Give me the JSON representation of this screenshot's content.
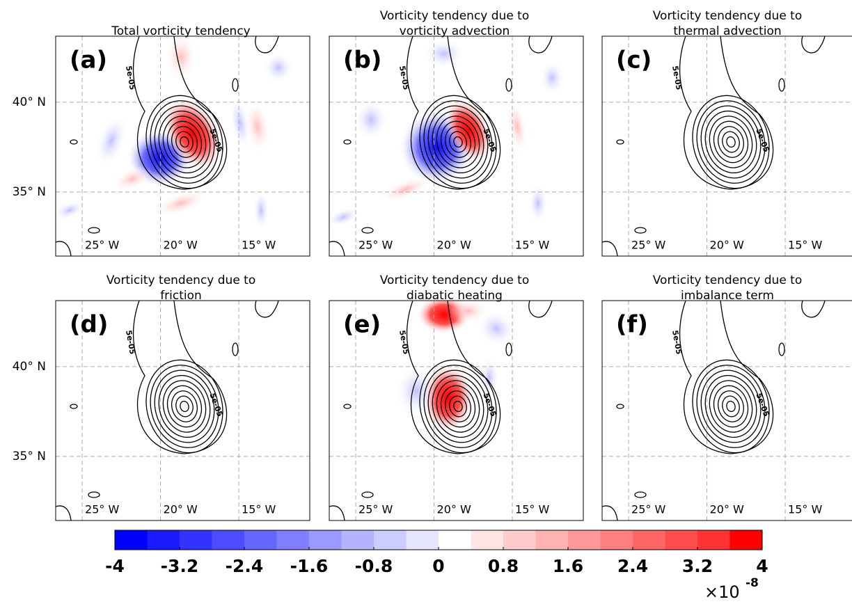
{
  "panels": [
    {
      "letter": "(a)",
      "title": [
        "Total vorticity tendency"
      ]
    },
    {
      "letter": "(b)",
      "title": [
        "Vorticity tendency due to",
        "vorticity advection"
      ]
    },
    {
      "letter": "(c)",
      "title": [
        "Vorticity tendency due to",
        "thermal advection"
      ]
    },
    {
      "letter": "(d)",
      "title": [
        "Vorticity tendency due to",
        "friction"
      ]
    },
    {
      "letter": "(e)",
      "title": [
        "Vorticity tendency due to",
        "diabatic heating"
      ]
    },
    {
      "letter": "(f)",
      "title": [
        "Vorticity tendency due to",
        "imbalance term"
      ]
    }
  ],
  "contour_label": "5e-05",
  "lat_lim": [
    31.43,
    43.68
  ],
  "lon_lim": [
    -26.69,
    -10.47
  ],
  "lat_ticks": [
    {
      "value": 40,
      "label": "40° N"
    },
    {
      "value": 35,
      "label": "35° N"
    }
  ],
  "lon_ticks": [
    {
      "value": -25,
      "label": "25° W"
    },
    {
      "value": -20,
      "label": "20° W"
    },
    {
      "value": -15,
      "label": "15° W"
    }
  ],
  "colorbar": {
    "lim": [
      -4,
      4
    ],
    "ticks": [
      -4,
      -3.2,
      -2.4,
      -1.6,
      -0.8,
      0,
      0.8,
      1.6,
      2.4,
      3.2,
      4
    ],
    "colors": [
      "#0000ff",
      "#1a1aff",
      "#3333ff",
      "#4d4dff",
      "#6666ff",
      "#8080ff",
      "#9999ff",
      "#b3b3ff",
      "#ccccff",
      "#e6e6ff",
      "#ffffff",
      "#ffe6e6",
      "#ffcccc",
      "#ffb3b3",
      "#ff9999",
      "#ff8080",
      "#ff6666",
      "#ff4d4d",
      "#ff3333",
      "#ff0000"
    ],
    "multiplier": "×10",
    "exponent": "-8"
  }
}
